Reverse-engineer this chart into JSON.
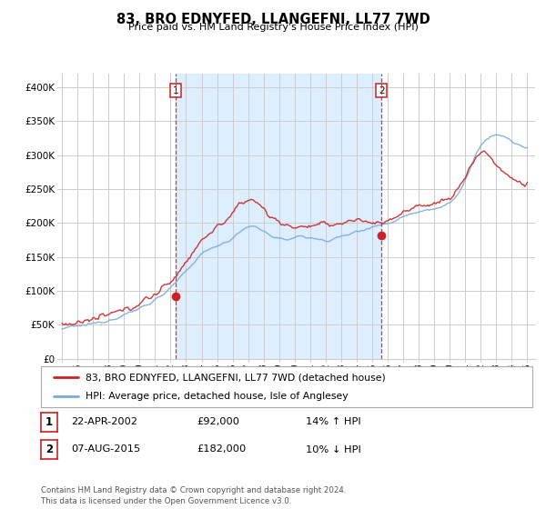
{
  "title": "83, BRO EDNYFED, LLANGEFNI, LL77 7WD",
  "subtitle": "Price paid vs. HM Land Registry's House Price Index (HPI)",
  "ylim": [
    0,
    420000
  ],
  "yticks": [
    0,
    50000,
    100000,
    150000,
    200000,
    250000,
    300000,
    350000,
    400000
  ],
  "ytick_labels": [
    "£0",
    "£50K",
    "£100K",
    "£150K",
    "£200K",
    "£250K",
    "£300K",
    "£350K",
    "£400K"
  ],
  "hpi_color": "#7aabe0",
  "price_color": "#cc2222",
  "shade_color": "#ddeeff",
  "marker1_x": 2002.31,
  "marker1_y": 92000,
  "marker2_x": 2015.59,
  "marker2_y": 182000,
  "legend_price_label": "83, BRO EDNYFED, LLANGEFNI, LL77 7WD (detached house)",
  "legend_hpi_label": "HPI: Average price, detached house, Isle of Anglesey",
  "table_row1": [
    "1",
    "22-APR-2002",
    "£92,000",
    "14% ↑ HPI"
  ],
  "table_row2": [
    "2",
    "07-AUG-2015",
    "£182,000",
    "10% ↓ HPI"
  ],
  "footer": "Contains HM Land Registry data © Crown copyright and database right 2024.\nThis data is licensed under the Open Government Licence v3.0.",
  "background_color": "#ffffff",
  "grid_color": "#cccccc",
  "xtick_start": 1995,
  "xtick_end": 2025
}
